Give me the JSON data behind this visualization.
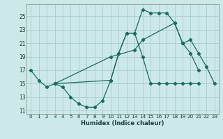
{
  "xlabel": "Humidex (Indice chaleur)",
  "xlim": [
    -0.5,
    23.5
  ],
  "ylim": [
    10.5,
    26.8
  ],
  "yticks": [
    11,
    13,
    15,
    17,
    19,
    21,
    23,
    25
  ],
  "xticks": [
    0,
    1,
    2,
    3,
    4,
    5,
    6,
    7,
    8,
    9,
    10,
    11,
    12,
    13,
    14,
    15,
    16,
    17,
    18,
    19,
    20,
    21,
    22,
    23
  ],
  "background_color": "#cce8e8",
  "grid_color": "#aacccc",
  "line_color": "#1a6b5a",
  "lines": [
    {
      "x": [
        0,
        1,
        2,
        3,
        4,
        5,
        6,
        7,
        8,
        9,
        10,
        11,
        12,
        13,
        14,
        15,
        16,
        17,
        18,
        19,
        20,
        21
      ],
      "y": [
        17,
        15.5,
        14.5,
        15,
        14.5,
        13,
        12,
        11.5,
        11.5,
        12.5,
        15.5,
        19.5,
        22.5,
        22.5,
        19,
        15,
        15,
        15,
        15,
        15,
        15,
        15
      ]
    },
    {
      "x": [
        3,
        10,
        11,
        12,
        13,
        14,
        15,
        16,
        17,
        18,
        19,
        20,
        21
      ],
      "y": [
        15,
        15.5,
        19.5,
        22.5,
        22.5,
        26,
        25.5,
        25.5,
        25.5,
        24,
        21,
        19.5,
        17
      ]
    },
    {
      "x": [
        3,
        10,
        13,
        14,
        18,
        19,
        20,
        21,
        22,
        23
      ],
      "y": [
        15,
        19,
        20,
        21.5,
        24,
        21,
        21.5,
        19.5,
        17.5,
        15
      ]
    }
  ]
}
